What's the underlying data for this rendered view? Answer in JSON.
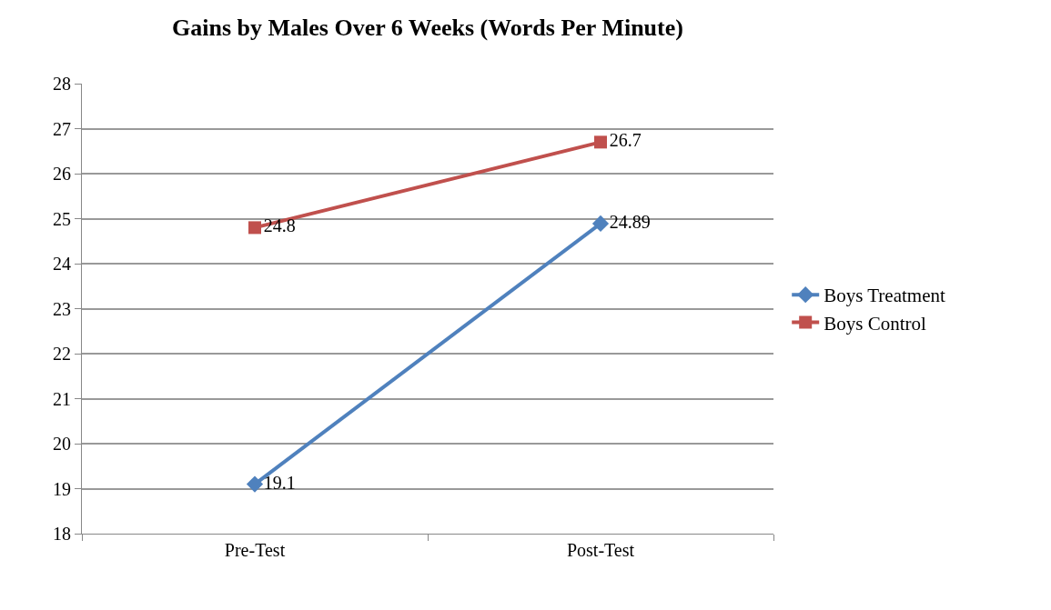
{
  "chart_data": {
    "type": "line",
    "title": "Gains by Males Over 6 Weeks (Words Per Minute)",
    "categories": [
      "Pre-Test",
      "Post-Test"
    ],
    "series": [
      {
        "name": "Boys Treatment",
        "color": "#4f81bd",
        "marker": "diamond",
        "values": [
          19.1,
          24.89
        ]
      },
      {
        "name": "Boys Control",
        "color": "#c0504d",
        "marker": "square",
        "values": [
          24.8,
          26.7
        ]
      }
    ],
    "ylim": [
      18,
      28
    ],
    "yticks": [
      18,
      19,
      20,
      21,
      22,
      23,
      24,
      25,
      26,
      27,
      28
    ],
    "grid": "y",
    "legend": "right",
    "data_labels": true,
    "line_style": "solid"
  }
}
